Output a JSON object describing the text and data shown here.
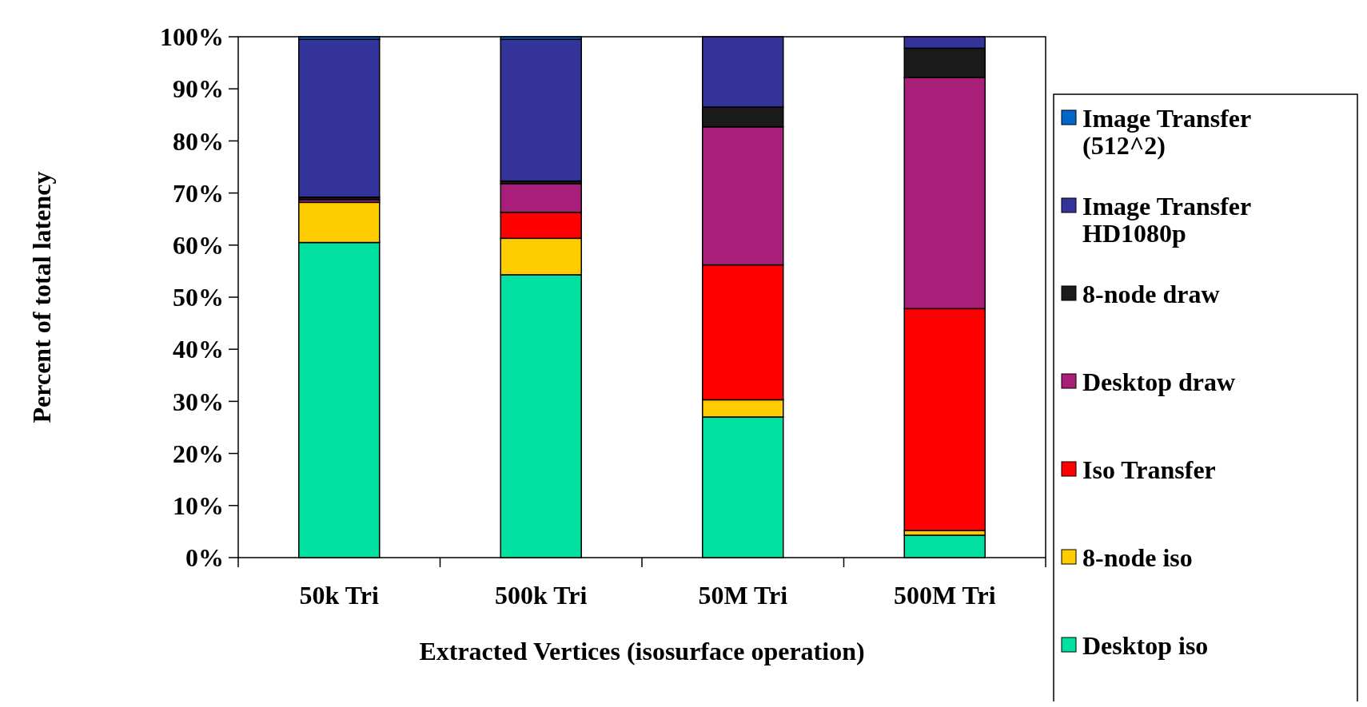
{
  "chart_data": {
    "type": "bar",
    "stacked": true,
    "xlabel": "Extracted Vertices (isosurface operation)",
    "ylabel": "Percent of total latency",
    "categories": [
      "50k Tri",
      "500k Tri",
      "50M Tri",
      "500M Tri"
    ],
    "series": [
      {
        "name": "Desktop iso",
        "color": "#00e0a0",
        "values": [
          60.5,
          54.3,
          27.0,
          4.3
        ]
      },
      {
        "name": "8-node iso",
        "color": "#ffcc00",
        "values": [
          7.7,
          7.0,
          3.3,
          0.9
        ]
      },
      {
        "name": "Iso Transfer",
        "color": "#ff0000",
        "values": [
          0,
          5.0,
          25.9,
          42.6
        ]
      },
      {
        "name": "Desktop draw",
        "color": "#a81e78",
        "values": [
          0.5,
          5.5,
          26.5,
          44.4
        ]
      },
      {
        "name": "8-node draw",
        "color": "#1a1a1a",
        "values": [
          0.5,
          0.5,
          3.8,
          5.6
        ]
      },
      {
        "name": "Image Transfer HD1080p",
        "color": "#333399",
        "values": [
          30.3,
          27.2,
          13.5,
          2.2
        ]
      },
      {
        "name": "Image Transfer (512^2)",
        "color": "#0066cc",
        "values": [
          0.5,
          0.5,
          0,
          0
        ]
      }
    ],
    "ylim": [
      0,
      100
    ],
    "yticks": [
      {
        "value": 0,
        "label": "0%"
      },
      {
        "value": 10,
        "label": "10%"
      },
      {
        "value": 20,
        "label": "20%"
      },
      {
        "value": 30,
        "label": "30%"
      },
      {
        "value": 40,
        "label": "40%"
      },
      {
        "value": 50,
        "label": "50%"
      },
      {
        "value": 60,
        "label": "60%"
      },
      {
        "value": 70,
        "label": "70%"
      },
      {
        "value": 80,
        "label": "80%"
      },
      {
        "value": 90,
        "label": "90%"
      },
      {
        "value": 100,
        "label": "100%"
      }
    ],
    "grid": false,
    "legend": "right"
  }
}
